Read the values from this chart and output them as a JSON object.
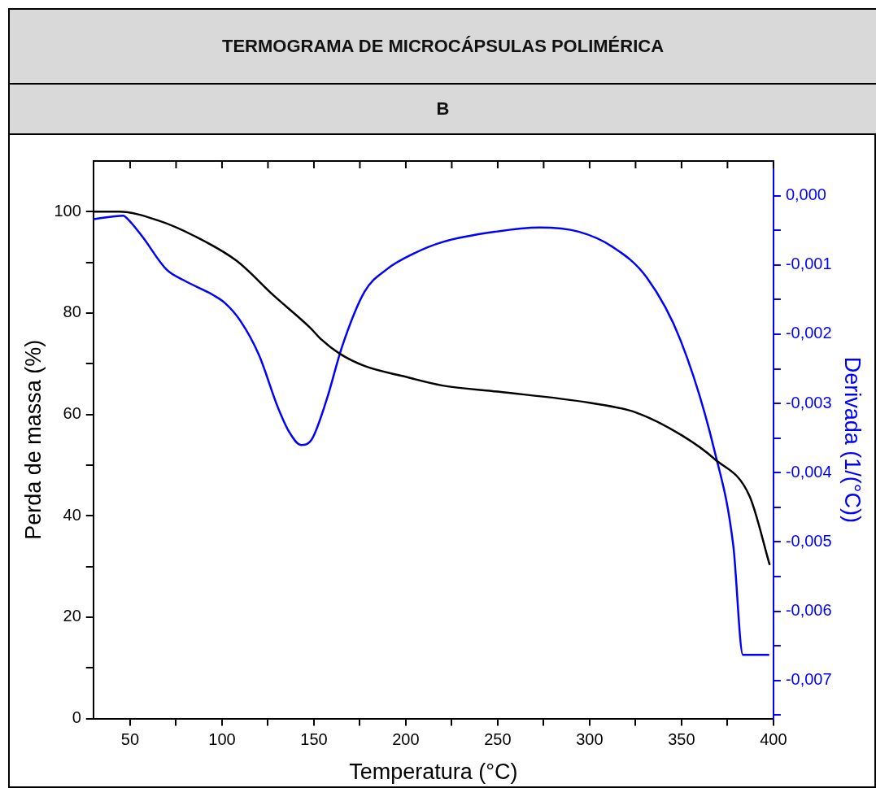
{
  "chart_data": {
    "type": "line",
    "title": "TERMOGRAMA DE MICROCÁPSULAS POLIMÉRICA",
    "subtitle": "B",
    "xlabel": "Temperatura (°C)",
    "ylabel": "Perda de massa (%)",
    "y2label": "Derivada (1/(°C))",
    "xlim": [
      30,
      400
    ],
    "xticks": [
      50,
      {
        "value": 75,
        "label": null
      },
      100,
      {
        "value": 125,
        "label": null
      },
      150,
      {
        "value": 175,
        "label": null
      },
      200,
      {
        "value": 225,
        "label": null
      },
      250,
      {
        "value": 275,
        "label": null
      },
      300,
      {
        "value": 325,
        "label": null
      },
      350,
      {
        "value": 375,
        "label": null
      },
      400
    ],
    "ylim": [
      0,
      110
    ],
    "yticks": [
      0,
      {
        "value": 10,
        "label": null
      },
      20,
      {
        "value": 30,
        "label": null
      },
      40,
      {
        "value": 50,
        "label": null
      },
      60,
      {
        "value": 70,
        "label": null
      },
      80,
      {
        "value": 90,
        "label": null
      },
      100
    ],
    "y2lim": [
      -0.00755,
      0.0005
    ],
    "y2ticks": [
      {
        "value": 0,
        "label": "0,000"
      },
      {
        "value": -0.0005,
        "label": null
      },
      {
        "value": -0.001,
        "label": "-0,001"
      },
      {
        "value": -0.0015,
        "label": null
      },
      {
        "value": -0.002,
        "label": "-0,002"
      },
      {
        "value": -0.0025,
        "label": null
      },
      {
        "value": -0.003,
        "label": "-0,003"
      },
      {
        "value": -0.0035,
        "label": null
      },
      {
        "value": -0.004,
        "label": "-0,004"
      },
      {
        "value": -0.0045,
        "label": null
      },
      {
        "value": -0.005,
        "label": "-0,005"
      },
      {
        "value": -0.0055,
        "label": null
      },
      {
        "value": -0.006,
        "label": "-0,006"
      },
      {
        "value": -0.0065,
        "label": null
      },
      {
        "value": -0.007,
        "label": "-0,007"
      },
      {
        "value": -0.0075,
        "label": null
      }
    ],
    "grid": false,
    "legend": false,
    "marker": "none",
    "line_style": "solid",
    "series": [
      {
        "color": "#000000",
        "x": [
          30,
          44,
          65,
          85,
          108,
          128,
          148,
          154,
          164,
          178,
          198,
          220,
          250,
          300,
          325,
          350,
          368,
          387,
          398
        ],
        "values": [
          100,
          100,
          98.3,
          95.2,
          90.3,
          83.5,
          77.1,
          74.8,
          72,
          69.5,
          67.6,
          65.7,
          64.5,
          62.3,
          60.4,
          55.9,
          51.2,
          43.9,
          30.3
        ]
      },
      {
        "color": "#0000ff",
        "axis": "y2",
        "x": [
          30,
          46.3,
          48.4,
          56.6,
          69.9,
          79.1,
          95.5,
          101.6,
          109.8,
          120.1,
          130.3,
          136.5,
          143,
          148.8,
          157,
          165.2,
          177.5,
          189.8,
          204,
          220,
          249,
          272.6,
          294,
          312.5,
          331,
          349.5,
          368,
          378.2,
          383.4,
          397.7
        ],
        "values": [
          -0.00034,
          -0.00029,
          -0.00033,
          -0.00059,
          -0.00107,
          -0.00122,
          -0.00144,
          -0.00155,
          -0.0018,
          -0.0023,
          -0.00305,
          -0.00341,
          -0.0036,
          -0.00352,
          -0.00294,
          -0.00219,
          -0.00139,
          -0.00106,
          -0.00084,
          -0.00067,
          -0.00052,
          -0.00046,
          -0.00052,
          -0.00074,
          -0.00118,
          -0.00209,
          -0.00369,
          -0.00506,
          -0.00663,
          -0.00663
        ]
      }
    ]
  }
}
